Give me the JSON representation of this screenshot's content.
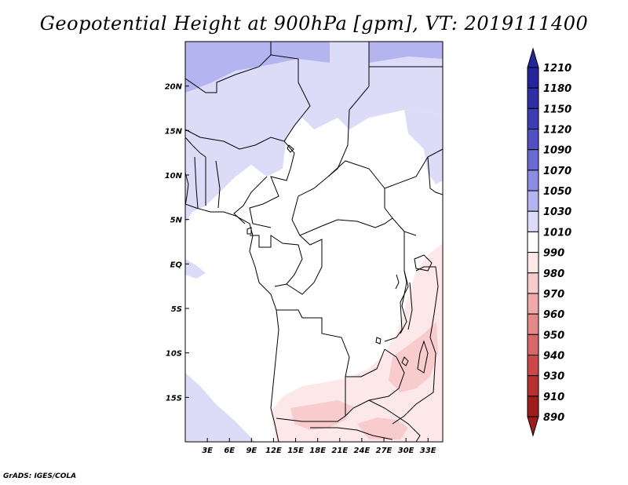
{
  "title": "Geopotential Height at 900hPa [gpm], VT: 2019111400",
  "footer": "GrADS: IGES/COLA",
  "map": {
    "projection": "latlon",
    "lon_range": [
      0,
      35
    ],
    "lat_range": [
      -20,
      25
    ],
    "lat_ticks": [
      {
        "value": 20,
        "label": "20N"
      },
      {
        "value": 15,
        "label": "15N"
      },
      {
        "value": 10,
        "label": "10N"
      },
      {
        "value": 5,
        "label": "5N"
      },
      {
        "value": 0,
        "label": "EQ"
      },
      {
        "value": -5,
        "label": "5S"
      },
      {
        "value": -10,
        "label": "10S"
      },
      {
        "value": -15,
        "label": "15S"
      }
    ],
    "lon_ticks": [
      {
        "value": 3,
        "label": "3E"
      },
      {
        "value": 6,
        "label": "6E"
      },
      {
        "value": 9,
        "label": "9E"
      },
      {
        "value": 12,
        "label": "12E"
      },
      {
        "value": 15,
        "label": "15E"
      },
      {
        "value": 18,
        "label": "18E"
      },
      {
        "value": 21,
        "label": "21E"
      },
      {
        "value": 24,
        "label": "24E"
      },
      {
        "value": 27,
        "label": "27E"
      },
      {
        "value": 30,
        "label": "30E"
      },
      {
        "value": 33,
        "label": "33E"
      }
    ]
  },
  "colorbar": {
    "levels": [
      {
        "label": "1210",
        "color": "#1c1c9c"
      },
      {
        "label": "1180",
        "color": "#24249c"
      },
      {
        "label": "1150",
        "color": "#2e2ea8"
      },
      {
        "label": "1120",
        "color": "#3c3cb4"
      },
      {
        "label": "1090",
        "color": "#5050c4"
      },
      {
        "label": "1070",
        "color": "#6a6ad4"
      },
      {
        "label": "1050",
        "color": "#8c8ce4"
      },
      {
        "label": "1030",
        "color": "#b4b4f0"
      },
      {
        "label": "1010",
        "color": "#dcdcf8"
      },
      {
        "label": "990",
        "color": "#ffffff"
      },
      {
        "label": "980",
        "color": "#fce8e8"
      },
      {
        "label": "970",
        "color": "#f8cccc"
      },
      {
        "label": "960",
        "color": "#f0a8a8"
      },
      {
        "label": "950",
        "color": "#e48888"
      },
      {
        "label": "940",
        "color": "#d86868"
      },
      {
        "label": "930",
        "color": "#cc4848"
      },
      {
        "label": "910",
        "color": "#b83030"
      },
      {
        "label": "890",
        "color": "#a01c1c"
      }
    ],
    "top_color": "#24249c",
    "bottom_color": "#a01c1c"
  },
  "colors": {
    "high_1": "#dcdcf8",
    "high_2": "#b4b4f0",
    "low_1": "#fce8e8",
    "low_2": "#f8cccc",
    "border": "#000000"
  }
}
